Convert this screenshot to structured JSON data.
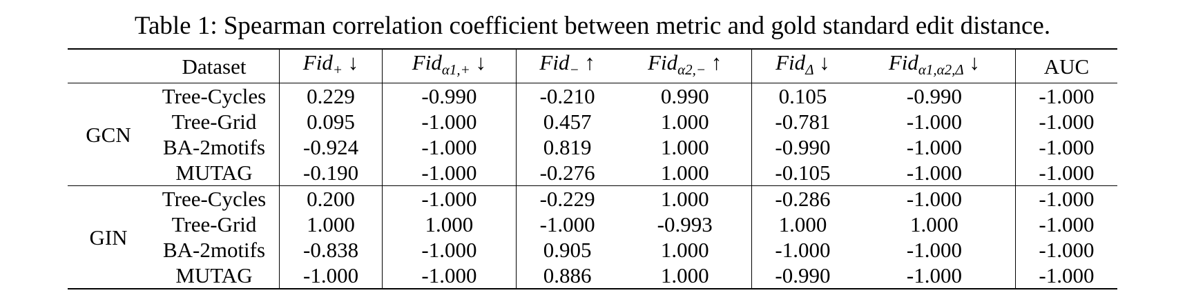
{
  "caption": "Table 1: Spearman correlation coefficient between metric and gold standard edit distance.",
  "columns": {
    "dataset": "Dataset",
    "fid_plus": {
      "base": "Fid",
      "sub": "+",
      "arrow": "↓"
    },
    "fid_alpha1_plus": {
      "base": "Fid",
      "sub": "α1,+",
      "arrow": "↓"
    },
    "fid_minus": {
      "base": "Fid",
      "sub": "−",
      "arrow": "↑"
    },
    "fid_alpha2_minus": {
      "base": "Fid",
      "sub": "α2,−",
      "arrow": "↑"
    },
    "fid_delta": {
      "base": "Fid",
      "sub": "Δ",
      "arrow": "↓"
    },
    "fid_alpha12_delta": {
      "base": "Fid",
      "sub": "α1,α2,Δ",
      "arrow": "↓"
    },
    "auc": "AUC"
  },
  "groups": [
    {
      "model": "GCN",
      "rows": [
        {
          "dataset": "Tree-Cycles",
          "values": [
            "0.229",
            "-0.990",
            "-0.210",
            "0.990",
            "0.105",
            "-0.990",
            "-1.000"
          ],
          "bold": [
            false,
            true,
            false,
            true,
            false,
            true,
            false
          ]
        },
        {
          "dataset": "Tree-Grid",
          "values": [
            "0.095",
            "-1.000",
            "0.457",
            "1.000",
            "-0.781",
            "-1.000",
            "-1.000"
          ],
          "bold": [
            false,
            true,
            false,
            true,
            false,
            true,
            false
          ]
        },
        {
          "dataset": "BA-2motifs",
          "values": [
            "-0.924",
            "-1.000",
            "0.819",
            "1.000",
            "-0.990",
            "-1.000",
            "-1.000"
          ],
          "bold": [
            false,
            true,
            false,
            true,
            false,
            true,
            false
          ]
        },
        {
          "dataset": "MUTAG",
          "values": [
            "-0.190",
            "-1.000",
            "-0.276",
            "1.000",
            "-0.105",
            "-1.000",
            "-1.000"
          ],
          "bold": [
            false,
            true,
            false,
            true,
            false,
            true,
            false
          ]
        }
      ]
    },
    {
      "model": "GIN",
      "rows": [
        {
          "dataset": "Tree-Cycles",
          "values": [
            "0.200",
            "-1.000",
            "-0.229",
            "1.000",
            "-0.286",
            "-1.000",
            "-1.000"
          ],
          "bold": [
            false,
            true,
            false,
            true,
            false,
            true,
            false
          ]
        },
        {
          "dataset": "Tree-Grid",
          "values": [
            "1.000",
            "1.000",
            "-1.000",
            "-0.993",
            "1.000",
            "1.000",
            "-1.000"
          ],
          "bold": [
            false,
            false,
            false,
            false,
            false,
            false,
            false
          ]
        },
        {
          "dataset": "BA-2motifs",
          "values": [
            "-0.838",
            "-1.000",
            "0.905",
            "1.000",
            "-1.000",
            "-1.000",
            "-1.000"
          ],
          "bold": [
            false,
            true,
            false,
            true,
            true,
            true,
            false
          ]
        },
        {
          "dataset": "MUTAG",
          "values": [
            "-1.000",
            "-1.000",
            "0.886",
            "1.000",
            "-0.990",
            "-1.000",
            "-1.000"
          ],
          "bold": [
            true,
            true,
            false,
            true,
            false,
            true,
            false
          ]
        }
      ]
    }
  ]
}
